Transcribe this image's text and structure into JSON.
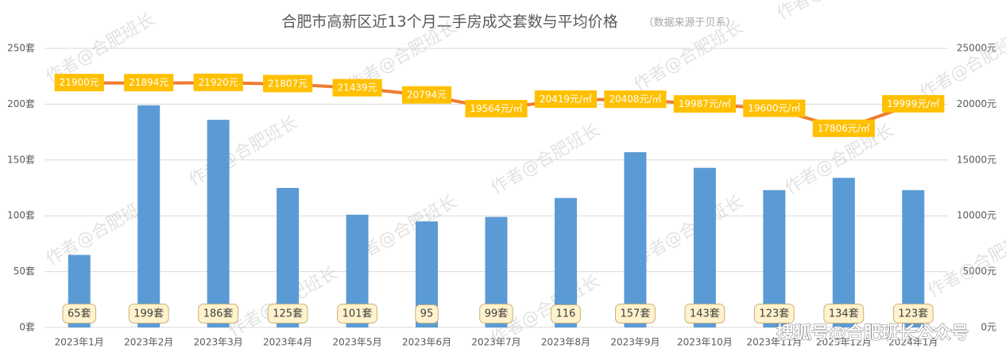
{
  "chart_data": {
    "type": "bar-line",
    "title": "合肥市高新区近13个月二手房成交套数与平均价格",
    "subtitle": "（数据来源于贝系）",
    "watermark": "作者@合肥班长",
    "source_mark": "搜狐号@合肥班长公众号",
    "categories": [
      "2023年1月",
      "2023年2月",
      "2023年3月",
      "2023年4月",
      "2023年5月",
      "2023年6月",
      "2023年7月",
      "2023年8月",
      "2023年9月",
      "2023年10月",
      "2023年11月",
      "2023年12月",
      "2024年1月"
    ],
    "series": [
      {
        "type": "bar",
        "color": "#5b9bd5",
        "values": [
          65,
          199,
          186,
          125,
          101,
          95,
          99,
          116,
          157,
          143,
          123,
          134,
          123
        ],
        "value_labels": [
          "65套",
          "199套",
          "186套",
          "125套",
          "101套",
          "95",
          "99套",
          "116",
          "157套",
          "143套",
          "123套",
          "134套",
          "123套"
        ]
      },
      {
        "type": "line",
        "axis": "y2",
        "color": "#ed7d31",
        "values": [
          21900,
          21894,
          21920,
          21807,
          21439,
          20794,
          19564,
          20419,
          20408,
          19987,
          19600,
          17806,
          19999
        ],
        "value_labels": [
          "21900元",
          "21894元",
          "21920元",
          "21807元",
          "21439元",
          "20794元",
          "19564元/㎡",
          "20419元/㎡",
          "20408元/㎡",
          "19987元/㎡",
          "19600元/㎡",
          "17806元/㎡",
          "19999元/㎡"
        ]
      }
    ],
    "ylim": [
      0,
      250
    ],
    "yticks": [
      {
        "value": 0,
        "label": "0套"
      },
      {
        "value": 50,
        "label": "50套"
      },
      {
        "value": 100,
        "label": "100套"
      },
      {
        "value": 150,
        "label": "150套"
      },
      {
        "value": 200,
        "label": "200套"
      },
      {
        "value": 250,
        "label": "250套"
      }
    ],
    "y2lim": [
      0,
      25000
    ],
    "y2ticks": [
      {
        "value": 0,
        "label": "0元"
      },
      {
        "value": 5000,
        "label": "5000元"
      },
      {
        "value": 10000,
        "label": "10000元"
      },
      {
        "value": 15000,
        "label": "15000元"
      },
      {
        "value": 20000,
        "label": "20000元"
      },
      {
        "value": 25000,
        "label": "25000元"
      }
    ],
    "grid": true
  }
}
